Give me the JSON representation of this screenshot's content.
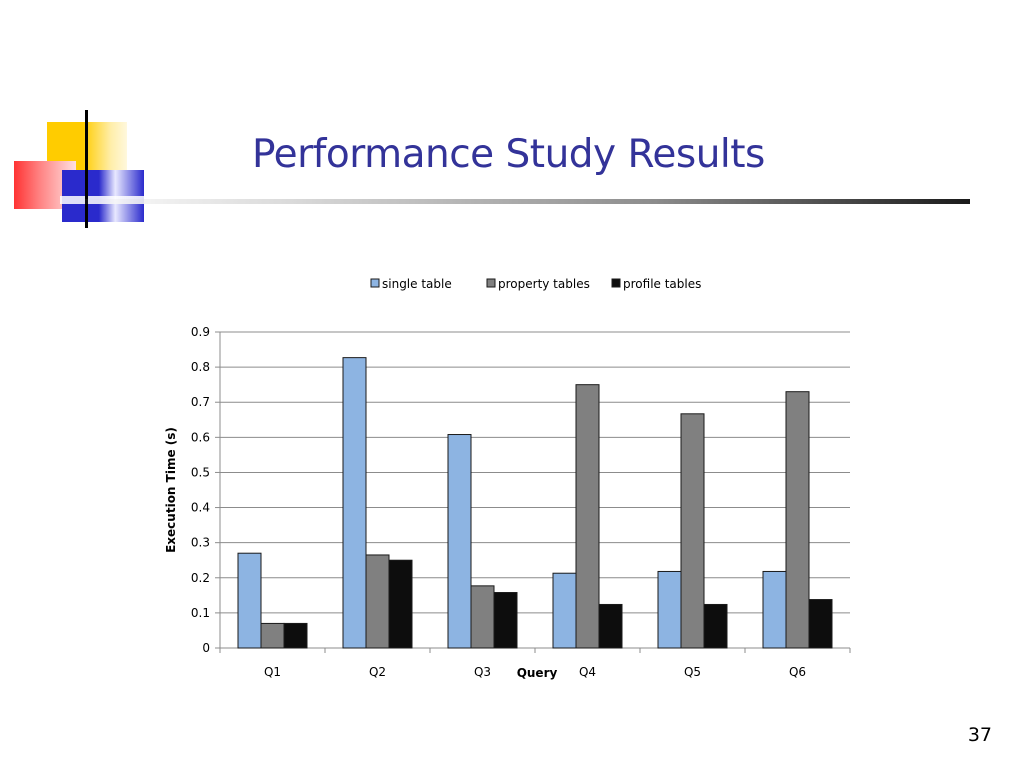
{
  "slide": {
    "title": "Performance Study Results",
    "page_number": "37"
  },
  "colors": {
    "title": "#333399",
    "single_table": "#8db4e2",
    "property_tables": "#808080",
    "profile_tables": "#0d0d0d"
  },
  "chart_data": {
    "type": "bar",
    "title": "",
    "xlabel": "Query",
    "ylabel": "Execution Time (s)",
    "categories": [
      "Q1",
      "Q2",
      "Q3",
      "Q4",
      "Q5",
      "Q6"
    ],
    "ylim": [
      0,
      0.9
    ],
    "yticks": [
      "0",
      "0.1",
      "0.2",
      "0.3",
      "0.4",
      "0.5",
      "0.6",
      "0.7",
      "0.8",
      "0.9"
    ],
    "grid": true,
    "legend_position": "top",
    "series": [
      {
        "name": "single table",
        "values": [
          0.27,
          0.827,
          0.608,
          0.213,
          0.218,
          0.218
        ]
      },
      {
        "name": "property tables",
        "values": [
          0.07,
          0.265,
          0.177,
          0.75,
          0.667,
          0.73
        ]
      },
      {
        "name": "profile tables",
        "values": [
          0.07,
          0.25,
          0.158,
          0.124,
          0.124,
          0.138
        ]
      }
    ]
  }
}
